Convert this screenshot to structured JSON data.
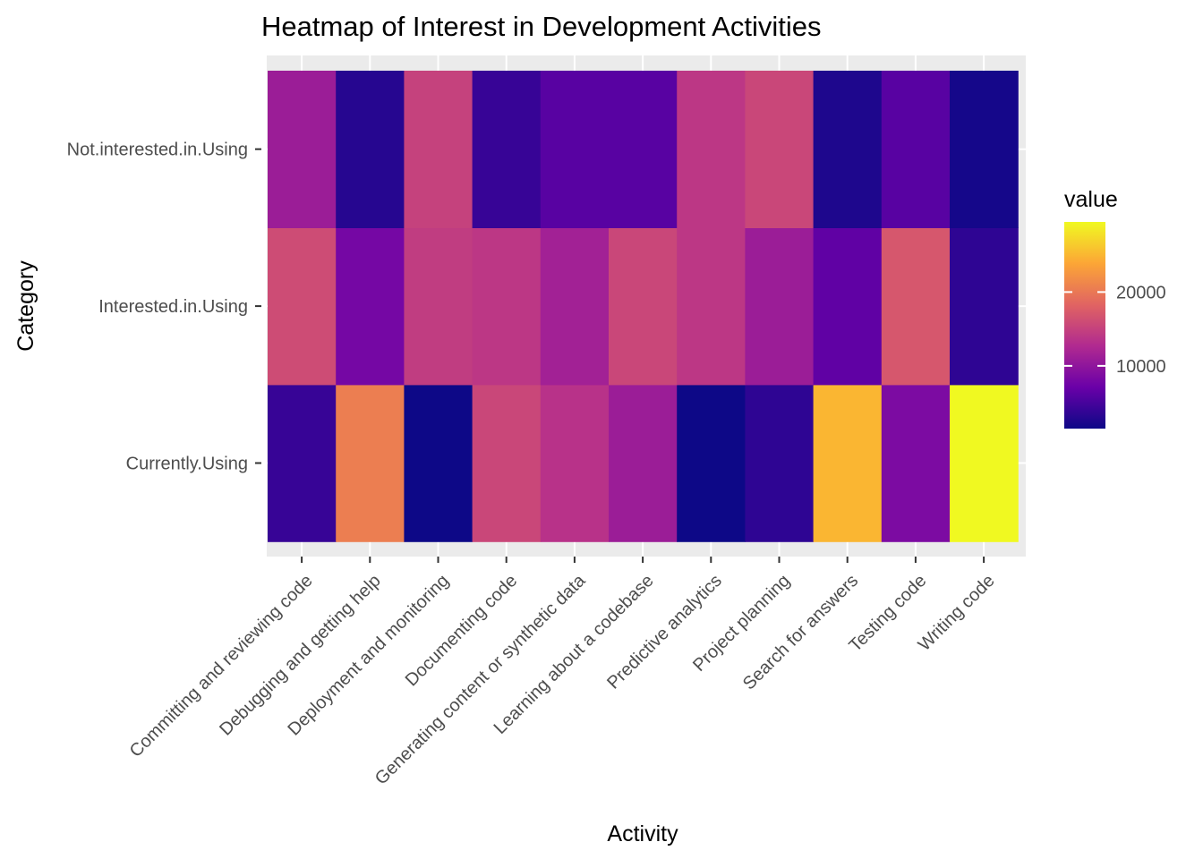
{
  "chart_data": {
    "type": "heatmap",
    "title": "Heatmap of Interest in Development Activities",
    "xlabel": "Activity",
    "ylabel": "Category",
    "x_categories": [
      "Committing and reviewing code",
      "Debugging and getting help",
      "Deployment and monitoring",
      "Documenting code",
      "Generating content or synthetic data",
      "Learning about a codebase",
      "Predictive analytics",
      "Project planning",
      "Search for answers",
      "Testing code",
      "Writing code"
    ],
    "y_categories": [
      "Currently.Using",
      "Interested.in.Using",
      "Not.interested.in.Using"
    ],
    "values": [
      [
        4000,
        20500,
        1500,
        15500,
        13500,
        11000,
        1500,
        3500,
        25000,
        8500,
        29500
      ],
      [
        16000,
        8000,
        14500,
        14000,
        11500,
        15500,
        14000,
        11000,
        6500,
        17000,
        3500
      ],
      [
        11000,
        3000,
        15000,
        4000,
        6000,
        6000,
        14000,
        15500,
        2500,
        6000,
        2000
      ]
    ],
    "color_scale": {
      "name": "plasma",
      "min": 1500,
      "max": 29500,
      "stops": [
        "#0d0887",
        "#6a00a8",
        "#b12a90",
        "#e16462",
        "#fca636",
        "#f0f921"
      ]
    },
    "legend": {
      "title": "value",
      "ticks": [
        10000,
        20000
      ],
      "tick_labels": [
        "10000",
        "20000"
      ],
      "position": "right"
    },
    "panel_background": "#ebebeb",
    "grid": true
  }
}
